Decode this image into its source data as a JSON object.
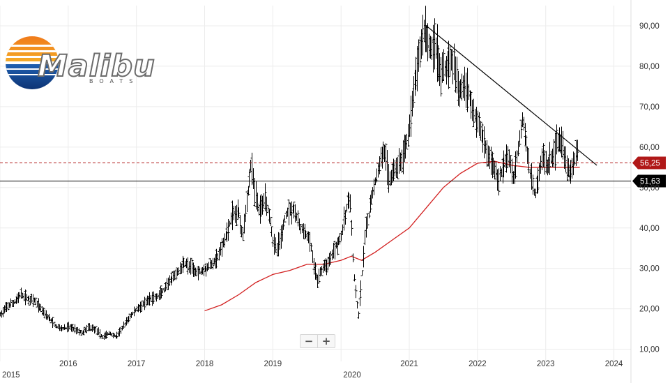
{
  "logo": {
    "name": "Malibu",
    "sub": "BOATS",
    "colors": {
      "sun_top": "#f07a1a",
      "sun_mid": "#f5b02a",
      "sea": "#1f5fb0",
      "sea_dark": "#0b2f6e"
    }
  },
  "zoom": {
    "minus_label": "−",
    "plus_label": "+"
  },
  "chart_data": {
    "type": "line",
    "subtype": "bar-ohlc",
    "title": "",
    "xlabel": "",
    "ylabel": "",
    "x_domain": [
      2015.0,
      2024.25
    ],
    "ylim": [
      7,
      95
    ],
    "grid": true,
    "yticks": [
      {
        "v": 10,
        "label": "10,00"
      },
      {
        "v": 20,
        "label": "20,00"
      },
      {
        "v": 30,
        "label": "30,00"
      },
      {
        "v": 40,
        "label": "40,00"
      },
      {
        "v": 50,
        "label": "50,00"
      },
      {
        "v": 60,
        "label": "60,00"
      },
      {
        "v": 70,
        "label": "70,00"
      },
      {
        "v": 80,
        "label": "80,00"
      },
      {
        "v": 90,
        "label": "90,00"
      }
    ],
    "xticks": [
      {
        "v": 2015.0,
        "label": "2015",
        "major": true
      },
      {
        "v": 2016.0,
        "label": "2016",
        "major": false
      },
      {
        "v": 2017.0,
        "label": "2017",
        "major": false
      },
      {
        "v": 2018.0,
        "label": "2018",
        "major": false
      },
      {
        "v": 2019.0,
        "label": "2019",
        "major": false
      },
      {
        "v": 2020.0,
        "label": "2020",
        "major": true
      },
      {
        "v": 2021.0,
        "label": "2021",
        "major": false
      },
      {
        "v": 2022.0,
        "label": "2022",
        "major": false
      },
      {
        "v": 2023.0,
        "label": "2023",
        "major": false
      },
      {
        "v": 2024.0,
        "label": "2024",
        "major": false
      }
    ],
    "price_series": {
      "color": "#000000",
      "points": [
        [
          2015.0,
          18.5
        ],
        [
          2015.1,
          20.5
        ],
        [
          2015.2,
          21.5
        ],
        [
          2015.3,
          23.5
        ],
        [
          2015.4,
          22.5
        ],
        [
          2015.5,
          22.0
        ],
        [
          2015.6,
          20.0
        ],
        [
          2015.7,
          18.0
        ],
        [
          2015.8,
          16.0
        ],
        [
          2015.9,
          15.0
        ],
        [
          2016.0,
          15.5
        ],
        [
          2016.1,
          15.0
        ],
        [
          2016.2,
          14.0
        ],
        [
          2016.3,
          15.5
        ],
        [
          2016.4,
          15.0
        ],
        [
          2016.5,
          13.0
        ],
        [
          2016.6,
          14.0
        ],
        [
          2016.7,
          13.0
        ],
        [
          2016.8,
          15.5
        ],
        [
          2016.9,
          18.0
        ],
        [
          2017.0,
          20.0
        ],
        [
          2017.1,
          21.0
        ],
        [
          2017.2,
          22.5
        ],
        [
          2017.3,
          23.0
        ],
        [
          2017.4,
          24.5
        ],
        [
          2017.5,
          27.0
        ],
        [
          2017.6,
          29.0
        ],
        [
          2017.7,
          31.5
        ],
        [
          2017.8,
          30.0
        ],
        [
          2017.9,
          29.0
        ],
        [
          2018.0,
          30.0
        ],
        [
          2018.1,
          31.0
        ],
        [
          2018.2,
          33.0
        ],
        [
          2018.3,
          37.5
        ],
        [
          2018.4,
          43.0
        ],
        [
          2018.5,
          44.0
        ],
        [
          2018.55,
          38.0
        ],
        [
          2018.62,
          47.0
        ],
        [
          2018.68,
          56.5
        ],
        [
          2018.72,
          50.0
        ],
        [
          2018.8,
          44.0
        ],
        [
          2018.88,
          48.0
        ],
        [
          2018.96,
          42.0
        ],
        [
          2019.0,
          37.0
        ],
        [
          2019.05,
          34.5
        ],
        [
          2019.12,
          38.0
        ],
        [
          2019.2,
          44.0
        ],
        [
          2019.3,
          45.0
        ],
        [
          2019.4,
          40.0
        ],
        [
          2019.5,
          38.0
        ],
        [
          2019.55,
          36.0
        ],
        [
          2019.6,
          30.0
        ],
        [
          2019.65,
          27.0
        ],
        [
          2019.72,
          30.0
        ],
        [
          2019.8,
          31.0
        ],
        [
          2019.9,
          35.0
        ],
        [
          2020.0,
          38.0
        ],
        [
          2020.08,
          45.0
        ],
        [
          2020.13,
          48.0
        ],
        [
          2020.18,
          30.0
        ],
        [
          2020.22,
          22.0
        ],
        [
          2020.25,
          18.5
        ],
        [
          2020.3,
          27.0
        ],
        [
          2020.35,
          38.0
        ],
        [
          2020.45,
          48.0
        ],
        [
          2020.55,
          55.0
        ],
        [
          2020.62,
          60.0
        ],
        [
          2020.7,
          52.0
        ],
        [
          2020.8,
          55.0
        ],
        [
          2020.9,
          57.0
        ],
        [
          2021.0,
          65.0
        ],
        [
          2021.08,
          76.0
        ],
        [
          2021.15,
          84.0
        ],
        [
          2021.22,
          90.0
        ],
        [
          2021.3,
          84.0
        ],
        [
          2021.38,
          86.0
        ],
        [
          2021.45,
          78.0
        ],
        [
          2021.55,
          80.0
        ],
        [
          2021.62,
          82.0
        ],
        [
          2021.72,
          74.0
        ],
        [
          2021.82,
          76.0
        ],
        [
          2021.92,
          70.0
        ],
        [
          2022.0,
          66.0
        ],
        [
          2022.08,
          62.0
        ],
        [
          2022.15,
          58.0
        ],
        [
          2022.22,
          56.0
        ],
        [
          2022.3,
          52.0
        ],
        [
          2022.38,
          55.0
        ],
        [
          2022.45,
          58.0
        ],
        [
          2022.52,
          52.0
        ],
        [
          2022.6,
          60.0
        ],
        [
          2022.66,
          68.0
        ],
        [
          2022.72,
          60.0
        ],
        [
          2022.78,
          52.0
        ],
        [
          2022.84,
          48.0
        ],
        [
          2022.9,
          54.0
        ],
        [
          2022.96,
          58.0
        ],
        [
          2023.02,
          55.0
        ],
        [
          2023.1,
          58.0
        ],
        [
          2023.18,
          62.0
        ],
        [
          2023.24,
          60.0
        ],
        [
          2023.3,
          56.0
        ],
        [
          2023.36,
          53.0
        ],
        [
          2023.42,
          57.0
        ],
        [
          2023.48,
          59.0
        ]
      ]
    },
    "moving_average": {
      "color": "#d21f1f",
      "points": [
        [
          2018.0,
          19.5
        ],
        [
          2018.25,
          21.0
        ],
        [
          2018.5,
          23.5
        ],
        [
          2018.75,
          26.5
        ],
        [
          2019.0,
          28.5
        ],
        [
          2019.25,
          29.5
        ],
        [
          2019.5,
          31.0
        ],
        [
          2019.75,
          31.0
        ],
        [
          2020.0,
          32.0
        ],
        [
          2020.15,
          33.0
        ],
        [
          2020.3,
          32.0
        ],
        [
          2020.5,
          34.0
        ],
        [
          2020.75,
          37.0
        ],
        [
          2021.0,
          40.0
        ],
        [
          2021.25,
          45.0
        ],
        [
          2021.5,
          50.0
        ],
        [
          2021.75,
          53.5
        ],
        [
          2022.0,
          56.0
        ],
        [
          2022.25,
          56.5
        ],
        [
          2022.5,
          55.5
        ],
        [
          2022.75,
          55.0
        ],
        [
          2023.0,
          55.0
        ],
        [
          2023.25,
          55.0
        ],
        [
          2023.5,
          55.0
        ]
      ]
    },
    "trendline": {
      "color": "#000000",
      "points": [
        [
          2021.25,
          90.0
        ],
        [
          2023.75,
          55.5
        ]
      ]
    },
    "levels": [
      {
        "value": 56.25,
        "label": "56,25",
        "color": "#b01818",
        "style": "dashed"
      },
      {
        "value": 51.63,
        "label": "51,63",
        "color": "#000000",
        "style": "solid"
      }
    ]
  }
}
